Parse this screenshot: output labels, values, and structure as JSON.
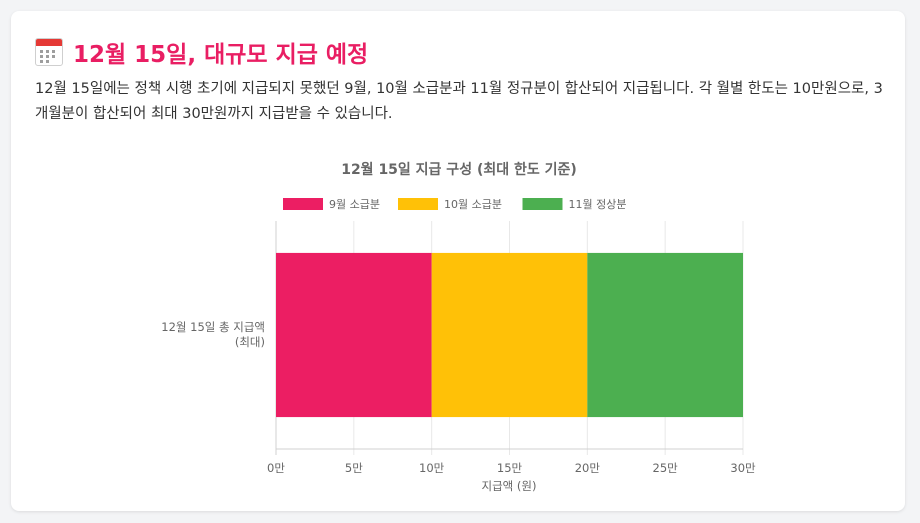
{
  "header": {
    "icon": "calendar-icon",
    "title": "12월 15일, 대규모 지급 예정"
  },
  "description": "12월 15일에는 정책 시행 초기에 지급되지 못했던 9월, 10월 소급분과 11월 정규분이 합산되어 지급됩니다. 각 월별 한도는 10만원으로, 3개월분이 합산되어 최대 30만원까지 지급받을 수 있습니다.",
  "chart_data": {
    "type": "bar",
    "orientation": "horizontal",
    "stacked": true,
    "title": "12월 15일 지급 구성 (최대 한도 기준)",
    "categories": [
      "12월 15일 총 지급액 (최대)"
    ],
    "category_lines": [
      "12월 15일 총 지급액",
      "(최대)"
    ],
    "series": [
      {
        "name": "9월 소급분",
        "values": [
          10
        ],
        "color": "#ec1e63"
      },
      {
        "name": "10월 소급분",
        "values": [
          10
        ],
        "color": "#ffc107"
      },
      {
        "name": "11월 정상분",
        "values": [
          10
        ],
        "color": "#4caf50"
      }
    ],
    "xlabel": "지급액 (원)",
    "xlim": [
      0,
      30
    ],
    "xticks": [
      0,
      5,
      10,
      15,
      20,
      25,
      30
    ],
    "xtick_labels": [
      "0만",
      "5만",
      "10만",
      "15만",
      "20만",
      "25만",
      "30만"
    ],
    "grid": true,
    "legend_position": "top"
  }
}
